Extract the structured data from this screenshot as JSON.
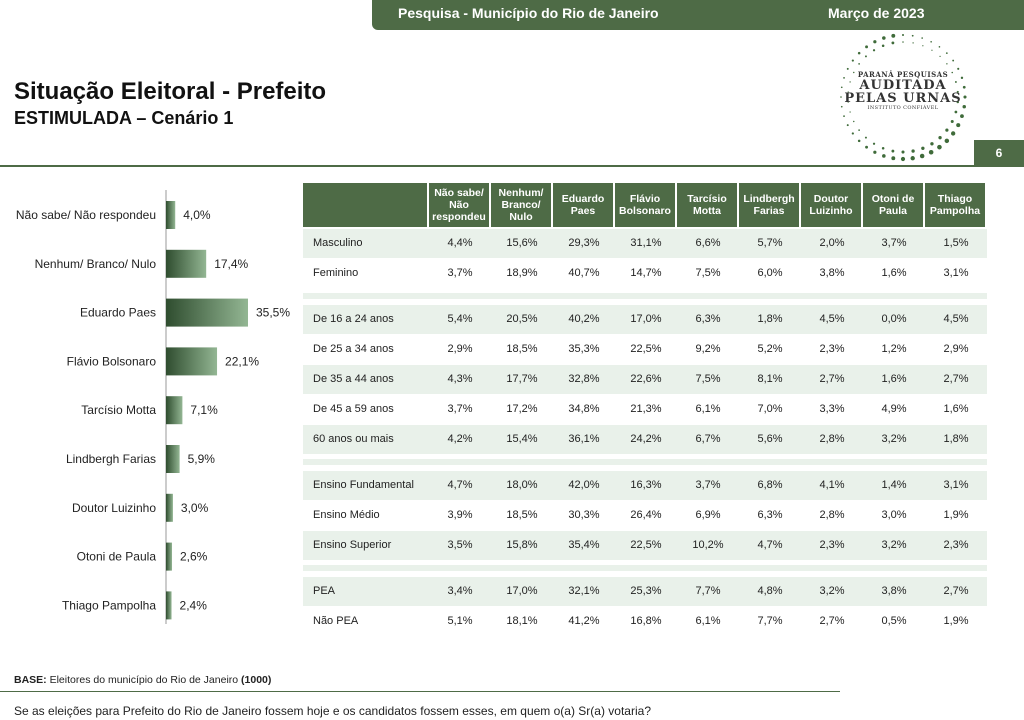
{
  "header": {
    "survey": "Pesquisa - Município do Rio de Janeiro",
    "date": "Março de 2023"
  },
  "title": "Situação Eleitoral - Prefeito",
  "subtitle": "ESTIMULADA – Cenário 1",
  "logo": {
    "line1": "PARANÁ PESQUISAS",
    "line2": "AUDITADA",
    "line3": "PELAS URNAS",
    "line4": "INSTITUTO CONFIÁVEL"
  },
  "page_number": "6",
  "chart_data": {
    "type": "bar",
    "orientation": "horizontal",
    "categories": [
      "Não sabe/ Não respondeu",
      "Nenhum/ Branco/ Nulo",
      "Eduardo Paes",
      "Flávio Bolsonaro",
      "Tarcísio Motta",
      "Lindbergh Farias",
      "Doutor Luizinho",
      "Otoni de Paula",
      "Thiago Pampolha"
    ],
    "values": [
      4.0,
      17.4,
      35.5,
      22.1,
      7.1,
      5.9,
      3.0,
      2.6,
      2.4
    ],
    "value_labels": [
      "4,0%",
      "17,4%",
      "35,5%",
      "22,1%",
      "7,1%",
      "5,9%",
      "3,0%",
      "2,6%",
      "2,4%"
    ],
    "xlim": [
      0,
      35.5
    ],
    "grid": false,
    "colors": {
      "bar_dark": "#2f4d2f",
      "bar_light": "#93b693"
    }
  },
  "table": {
    "columns": [
      "Não sabe/ Não respondeu",
      "Nenhum/ Branco/ Nulo",
      "Eduardo Paes",
      "Flávio Bolsonaro",
      "Tarcísio Motta",
      "Lindbergh Farias",
      "Doutor Luizinho",
      "Otoni de Paula",
      "Thiago Pampolha"
    ],
    "groups": [
      {
        "rows": [
          {
            "label": "Masculino",
            "values": [
              "4,4%",
              "15,6%",
              "29,3%",
              "31,1%",
              "6,6%",
              "5,7%",
              "2,0%",
              "3,7%",
              "1,5%"
            ]
          },
          {
            "label": "Feminino",
            "values": [
              "3,7%",
              "18,9%",
              "40,7%",
              "14,7%",
              "7,5%",
              "6,0%",
              "3,8%",
              "1,6%",
              "3,1%"
            ]
          }
        ]
      },
      {
        "rows": [
          {
            "label": "De 16 a 24 anos",
            "values": [
              "5,4%",
              "20,5%",
              "40,2%",
              "17,0%",
              "6,3%",
              "1,8%",
              "4,5%",
              "0,0%",
              "4,5%"
            ]
          },
          {
            "label": "De 25 a 34 anos",
            "values": [
              "2,9%",
              "18,5%",
              "35,3%",
              "22,5%",
              "9,2%",
              "5,2%",
              "2,3%",
              "1,2%",
              "2,9%"
            ]
          },
          {
            "label": "De 35 a 44 anos",
            "values": [
              "4,3%",
              "17,7%",
              "32,8%",
              "22,6%",
              "7,5%",
              "8,1%",
              "2,7%",
              "1,6%",
              "2,7%"
            ]
          },
          {
            "label": "De 45 a 59 anos",
            "values": [
              "3,7%",
              "17,2%",
              "34,8%",
              "21,3%",
              "6,1%",
              "7,0%",
              "3,3%",
              "4,9%",
              "1,6%"
            ]
          },
          {
            "label": "60 anos ou mais",
            "values": [
              "4,2%",
              "15,4%",
              "36,1%",
              "24,2%",
              "6,7%",
              "5,6%",
              "2,8%",
              "3,2%",
              "1,8%"
            ]
          }
        ]
      },
      {
        "rows": [
          {
            "label": "Ensino Fundamental",
            "values": [
              "4,7%",
              "18,0%",
              "42,0%",
              "16,3%",
              "3,7%",
              "6,8%",
              "4,1%",
              "1,4%",
              "3,1%"
            ]
          },
          {
            "label": "Ensino Médio",
            "values": [
              "3,9%",
              "18,5%",
              "30,3%",
              "26,4%",
              "6,9%",
              "6,3%",
              "2,8%",
              "3,0%",
              "1,9%"
            ]
          },
          {
            "label": "Ensino Superior",
            "values": [
              "3,5%",
              "15,8%",
              "35,4%",
              "22,5%",
              "10,2%",
              "4,7%",
              "2,3%",
              "3,2%",
              "2,3%"
            ]
          }
        ]
      },
      {
        "rows": [
          {
            "label": "PEA",
            "values": [
              "3,4%",
              "17,0%",
              "32,1%",
              "25,3%",
              "7,7%",
              "4,8%",
              "3,2%",
              "3,8%",
              "2,7%"
            ]
          },
          {
            "label": "Não PEA",
            "values": [
              "5,1%",
              "18,1%",
              "41,2%",
              "16,8%",
              "6,1%",
              "7,7%",
              "2,7%",
              "0,5%",
              "1,9%"
            ]
          }
        ]
      }
    ]
  },
  "base": {
    "label": "BASE:",
    "text": "Eleitores do município do Rio de Janeiro",
    "n": "(1000)"
  },
  "question": "Se as eleições para Prefeito do Rio de Janeiro fossem hoje e os candidatos fossem esses, em quem o(a) Sr(a) votaria?"
}
